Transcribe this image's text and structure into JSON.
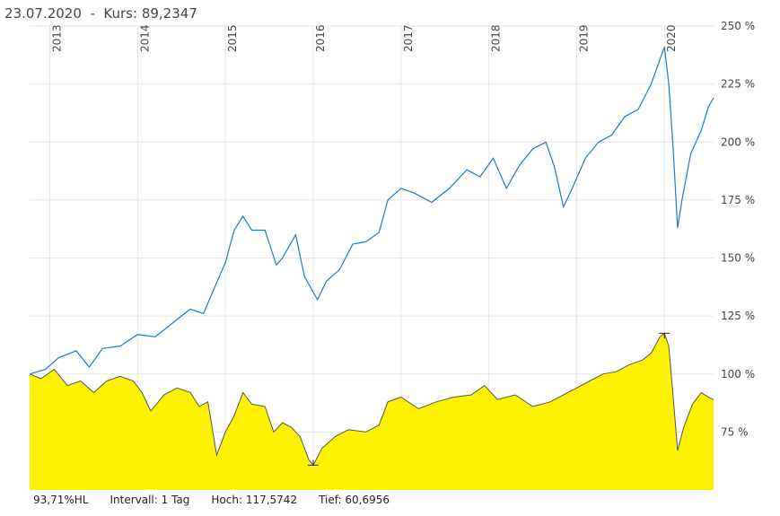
{
  "header": {
    "date": "23.07.2020",
    "separator": "-",
    "kurs_label": "Kurs:",
    "kurs_value": "89,2347"
  },
  "footer": {
    "percent": "93,71%HL",
    "interval": "Intervall: 1 Tag",
    "high": "Hoch: 117,5742",
    "low": "Tief: 60,6956"
  },
  "colors": {
    "line_series": "#1f78c8",
    "area_fill": "#fff200",
    "area_stroke": "#555555",
    "grid": "#e6e6e6"
  },
  "chart_data": {
    "type": "line",
    "y_axis": {
      "position": "right",
      "ticks": [
        "250 %",
        "225 %",
        "200 %",
        "175 %",
        "150 %",
        "125 %",
        "100 %",
        "75 %"
      ],
      "tick_values": [
        250,
        225,
        200,
        175,
        150,
        125,
        100,
        75
      ],
      "range": [
        50,
        250
      ]
    },
    "x_axis": {
      "ticks": [
        "2013",
        "2014",
        "2015",
        "2016",
        "2017",
        "2018",
        "2019",
        "2020"
      ],
      "tick_values": [
        2013.0,
        2014.0,
        2015.0,
        2016.0,
        2017.0,
        2018.0,
        2019.0,
        2020.0
      ],
      "range": [
        2012.77,
        2020.56
      ]
    },
    "grid": true,
    "series": [
      {
        "style": "line",
        "points": [
          [
            2012.77,
            100
          ],
          [
            2012.95,
            102
          ],
          [
            2013.1,
            107
          ],
          [
            2013.3,
            110
          ],
          [
            2013.45,
            103
          ],
          [
            2013.6,
            111
          ],
          [
            2013.8,
            112
          ],
          [
            2014.0,
            117
          ],
          [
            2014.2,
            116
          ],
          [
            2014.4,
            122
          ],
          [
            2014.6,
            128
          ],
          [
            2014.75,
            126
          ],
          [
            2014.85,
            135
          ],
          [
            2015.0,
            148
          ],
          [
            2015.1,
            162
          ],
          [
            2015.2,
            168
          ],
          [
            2015.3,
            162
          ],
          [
            2015.45,
            162
          ],
          [
            2015.58,
            147
          ],
          [
            2015.65,
            150
          ],
          [
            2015.8,
            160
          ],
          [
            2015.9,
            142
          ],
          [
            2016.05,
            132
          ],
          [
            2016.15,
            140
          ],
          [
            2016.3,
            145
          ],
          [
            2016.45,
            156
          ],
          [
            2016.6,
            157
          ],
          [
            2016.75,
            161
          ],
          [
            2016.85,
            175
          ],
          [
            2017.0,
            180
          ],
          [
            2017.15,
            178
          ],
          [
            2017.35,
            174
          ],
          [
            2017.55,
            180
          ],
          [
            2017.75,
            188
          ],
          [
            2017.9,
            185
          ],
          [
            2018.05,
            193
          ],
          [
            2018.2,
            180
          ],
          [
            2018.35,
            190
          ],
          [
            2018.5,
            197
          ],
          [
            2018.65,
            200
          ],
          [
            2018.75,
            189
          ],
          [
            2018.85,
            172
          ],
          [
            2018.95,
            180
          ],
          [
            2019.1,
            193
          ],
          [
            2019.25,
            200
          ],
          [
            2019.4,
            203
          ],
          [
            2019.55,
            211
          ],
          [
            2019.7,
            214
          ],
          [
            2019.85,
            225
          ],
          [
            2020.0,
            241
          ],
          [
            2020.05,
            225
          ],
          [
            2020.1,
            197
          ],
          [
            2020.15,
            163
          ],
          [
            2020.2,
            175
          ],
          [
            2020.3,
            195
          ],
          [
            2020.42,
            205
          ],
          [
            2020.5,
            215
          ],
          [
            2020.56,
            219
          ]
        ]
      },
      {
        "style": "area",
        "points": [
          [
            2012.77,
            100
          ],
          [
            2012.9,
            98
          ],
          [
            2013.05,
            102
          ],
          [
            2013.2,
            95
          ],
          [
            2013.35,
            97
          ],
          [
            2013.5,
            92
          ],
          [
            2013.65,
            97
          ],
          [
            2013.8,
            99
          ],
          [
            2013.95,
            97
          ],
          [
            2014.05,
            92
          ],
          [
            2014.15,
            84
          ],
          [
            2014.3,
            91
          ],
          [
            2014.45,
            94
          ],
          [
            2014.6,
            92
          ],
          [
            2014.7,
            86
          ],
          [
            2014.8,
            88
          ],
          [
            2014.9,
            65
          ],
          [
            2015.0,
            75
          ],
          [
            2015.1,
            82
          ],
          [
            2015.2,
            92
          ],
          [
            2015.3,
            87
          ],
          [
            2015.45,
            86
          ],
          [
            2015.55,
            75
          ],
          [
            2015.65,
            79
          ],
          [
            2015.75,
            77
          ],
          [
            2015.85,
            73
          ],
          [
            2015.95,
            63
          ],
          [
            2016.0,
            60.7
          ],
          [
            2016.1,
            68
          ],
          [
            2016.25,
            73
          ],
          [
            2016.4,
            76
          ],
          [
            2016.6,
            75
          ],
          [
            2016.75,
            78
          ],
          [
            2016.85,
            88
          ],
          [
            2017.0,
            90
          ],
          [
            2017.2,
            85
          ],
          [
            2017.4,
            88
          ],
          [
            2017.6,
            90
          ],
          [
            2017.8,
            91
          ],
          [
            2017.95,
            95
          ],
          [
            2018.1,
            89
          ],
          [
            2018.3,
            91
          ],
          [
            2018.5,
            86
          ],
          [
            2018.7,
            88
          ],
          [
            2018.85,
            91
          ],
          [
            2019.0,
            94
          ],
          [
            2019.15,
            97
          ],
          [
            2019.3,
            100
          ],
          [
            2019.45,
            101
          ],
          [
            2019.6,
            104
          ],
          [
            2019.75,
            106
          ],
          [
            2019.85,
            109
          ],
          [
            2019.95,
            116
          ],
          [
            2020.0,
            117.6
          ],
          [
            2020.05,
            112
          ],
          [
            2020.1,
            90
          ],
          [
            2020.15,
            67
          ],
          [
            2020.22,
            77
          ],
          [
            2020.32,
            87
          ],
          [
            2020.42,
            92
          ],
          [
            2020.5,
            90
          ],
          [
            2020.56,
            89
          ]
        ]
      }
    ],
    "markers": [
      {
        "label": "high",
        "x": 2020.0,
        "y": 117.5742
      },
      {
        "label": "low",
        "x": 2016.0,
        "y": 60.6956
      }
    ]
  }
}
